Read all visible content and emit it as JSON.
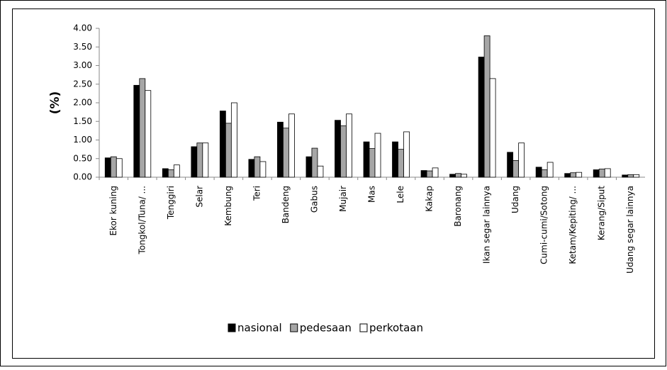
{
  "chart_data": {
    "type": "bar",
    "ylabel": "(%)",
    "categories": [
      "Ekor kuning",
      "Tongkol/Tuna/ ...",
      "Tenggiri",
      "Selar",
      "Kembung",
      "Teri",
      "Bandeng",
      "Gabus",
      "Mujair",
      "Mas",
      "Lele",
      "Kakap",
      "Baronang",
      "Ikan segar lainnya",
      "Udang",
      "Cumi-cumi/Sotong",
      "Ketam/Kepiting/ ...",
      "Kerang/Siput",
      "Udang segar lainnya"
    ],
    "series": [
      {
        "name": "nasional",
        "color": "#000000",
        "values": [
          0.52,
          2.47,
          0.23,
          0.82,
          1.78,
          0.48,
          1.48,
          0.55,
          1.53,
          0.95,
          0.95,
          0.18,
          0.08,
          3.23,
          0.67,
          0.27,
          0.1,
          0.2,
          0.06
        ]
      },
      {
        "name": "pedesaan",
        "color": "#a6a6a6",
        "values": [
          0.55,
          2.65,
          0.2,
          0.92,
          1.45,
          0.55,
          1.32,
          0.78,
          1.38,
          0.77,
          0.75,
          0.17,
          0.1,
          3.8,
          0.45,
          0.2,
          0.12,
          0.22,
          0.07
        ]
      },
      {
        "name": "perkotaan",
        "color": "#ffffff",
        "values": [
          0.5,
          2.33,
          0.33,
          0.92,
          2.0,
          0.42,
          1.7,
          0.3,
          1.7,
          1.18,
          1.22,
          0.25,
          0.08,
          2.65,
          0.92,
          0.4,
          0.13,
          0.23,
          0.07
        ]
      }
    ],
    "ylim": [
      0,
      4
    ],
    "yticks": [
      {
        "value": 0,
        "label": "0.00"
      },
      {
        "value": 0.5,
        "label": "0.50"
      },
      {
        "value": 1,
        "label": "1.00"
      },
      {
        "value": 1.5,
        "label": "1.50"
      },
      {
        "value": 2,
        "label": "2.00"
      },
      {
        "value": 2.5,
        "label": "2.50"
      },
      {
        "value": 3,
        "label": "3.00"
      },
      {
        "value": 3.5,
        "label": "3.50"
      },
      {
        "value": 4,
        "label": "4.00"
      }
    ],
    "legend": "bottom"
  }
}
